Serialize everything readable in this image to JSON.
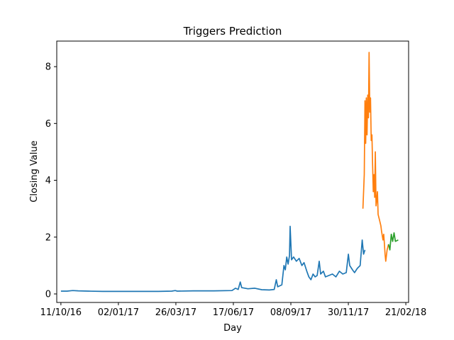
{
  "chart_data": {
    "type": "line",
    "title": "Triggers Prediction",
    "xlabel": "Day",
    "ylabel": "Closing Value",
    "xlim": [
      "2016-10-05",
      "2018-02-25"
    ],
    "ylim": [
      -0.3,
      8.9
    ],
    "grid": false,
    "x_ticks": [
      "11/10/16",
      "02/01/17",
      "26/03/17",
      "17/06/17",
      "08/09/17",
      "30/11/17",
      "21/02/18"
    ],
    "x_tick_dates": [
      "2016-10-11",
      "2017-01-02",
      "2017-03-26",
      "2017-06-17",
      "2017-09-08",
      "2017-11-30",
      "2018-02-21"
    ],
    "y_ticks": [
      0,
      2,
      4,
      6,
      8
    ],
    "series": [
      {
        "color": "#1f77b4",
        "points": [
          [
            "2016-10-11",
            0.1
          ],
          [
            "2016-10-20",
            0.1
          ],
          [
            "2016-10-28",
            0.12
          ],
          [
            "2016-11-05",
            0.11
          ],
          [
            "2016-11-20",
            0.1
          ],
          [
            "2016-12-10",
            0.09
          ],
          [
            "2017-01-02",
            0.09
          ],
          [
            "2017-02-01",
            0.09
          ],
          [
            "2017-03-01",
            0.09
          ],
          [
            "2017-03-20",
            0.1
          ],
          [
            "2017-03-25",
            0.12
          ],
          [
            "2017-03-28",
            0.1
          ],
          [
            "2017-04-20",
            0.11
          ],
          [
            "2017-05-20",
            0.11
          ],
          [
            "2017-06-15",
            0.12
          ],
          [
            "2017-06-20",
            0.2
          ],
          [
            "2017-06-24",
            0.16
          ],
          [
            "2017-06-27",
            0.42
          ],
          [
            "2017-06-29",
            0.22
          ],
          [
            "2017-07-08",
            0.18
          ],
          [
            "2017-07-18",
            0.2
          ],
          [
            "2017-07-28",
            0.15
          ],
          [
            "2017-08-08",
            0.14
          ],
          [
            "2017-08-15",
            0.16
          ],
          [
            "2017-08-18",
            0.5
          ],
          [
            "2017-08-20",
            0.25
          ],
          [
            "2017-08-26",
            0.32
          ],
          [
            "2017-08-29",
            1.0
          ],
          [
            "2017-08-31",
            0.85
          ],
          [
            "2017-09-02",
            1.3
          ],
          [
            "2017-09-04",
            1.05
          ],
          [
            "2017-09-06",
            1.35
          ],
          [
            "2017-09-07",
            2.38
          ],
          [
            "2017-09-09",
            1.2
          ],
          [
            "2017-09-12",
            1.3
          ],
          [
            "2017-09-16",
            1.15
          ],
          [
            "2017-09-20",
            1.25
          ],
          [
            "2017-09-24",
            1.0
          ],
          [
            "2017-09-27",
            1.1
          ],
          [
            "2017-10-01",
            0.8
          ],
          [
            "2017-10-04",
            0.6
          ],
          [
            "2017-10-07",
            0.5
          ],
          [
            "2017-10-10",
            0.7
          ],
          [
            "2017-10-13",
            0.6
          ],
          [
            "2017-10-16",
            0.65
          ],
          [
            "2017-10-19",
            1.15
          ],
          [
            "2017-10-21",
            0.7
          ],
          [
            "2017-10-25",
            0.8
          ],
          [
            "2017-10-28",
            0.6
          ],
          [
            "2017-11-02",
            0.65
          ],
          [
            "2017-11-07",
            0.7
          ],
          [
            "2017-11-12",
            0.6
          ],
          [
            "2017-11-17",
            0.8
          ],
          [
            "2017-11-22",
            0.7
          ],
          [
            "2017-11-27",
            0.75
          ],
          [
            "2017-11-30",
            1.4
          ],
          [
            "2017-12-02",
            1.0
          ],
          [
            "2017-12-06",
            0.85
          ],
          [
            "2017-12-09",
            0.75
          ],
          [
            "2017-12-13",
            0.9
          ],
          [
            "2017-12-17",
            1.0
          ],
          [
            "2017-12-20",
            1.9
          ],
          [
            "2017-12-22",
            1.4
          ],
          [
            "2017-12-24",
            1.55
          ]
        ]
      },
      {
        "color": "#ff7f0e",
        "points": [
          [
            "2017-12-21",
            3.0
          ],
          [
            "2017-12-23",
            4.2
          ],
          [
            "2017-12-24",
            6.8
          ],
          [
            "2017-12-25",
            5.3
          ],
          [
            "2017-12-26",
            6.9
          ],
          [
            "2017-12-27",
            5.6
          ],
          [
            "2017-12-28",
            7.0
          ],
          [
            "2017-12-29",
            6.2
          ],
          [
            "2017-12-30",
            8.5
          ],
          [
            "2017-12-31",
            6.4
          ],
          [
            "2018-01-01",
            6.9
          ],
          [
            "2018-01-02",
            5.4
          ],
          [
            "2018-01-03",
            5.6
          ],
          [
            "2018-01-04",
            4.6
          ],
          [
            "2018-01-05",
            3.6
          ],
          [
            "2018-01-06",
            4.2
          ],
          [
            "2018-01-07",
            3.4
          ],
          [
            "2018-01-08",
            5.0
          ],
          [
            "2018-01-09",
            3.1
          ],
          [
            "2018-01-10",
            3.3
          ],
          [
            "2018-01-11",
            3.6
          ],
          [
            "2018-01-12",
            2.8
          ],
          [
            "2018-01-14",
            2.6
          ],
          [
            "2018-01-16",
            2.4
          ],
          [
            "2018-01-17",
            2.2
          ],
          [
            "2018-01-19",
            1.9
          ],
          [
            "2018-01-20",
            2.1
          ],
          [
            "2018-01-21",
            1.8
          ],
          [
            "2018-01-22",
            1.4
          ],
          [
            "2018-01-23",
            1.15
          ],
          [
            "2018-01-25",
            1.55
          ],
          [
            "2018-01-27",
            1.75
          ]
        ]
      },
      {
        "color": "#2ca02c",
        "points": [
          [
            "2018-01-27",
            1.75
          ],
          [
            "2018-01-29",
            1.55
          ],
          [
            "2018-01-31",
            2.1
          ],
          [
            "2018-02-02",
            1.85
          ],
          [
            "2018-02-04",
            2.15
          ],
          [
            "2018-02-06",
            1.85
          ],
          [
            "2018-02-10",
            1.9
          ]
        ]
      }
    ]
  }
}
